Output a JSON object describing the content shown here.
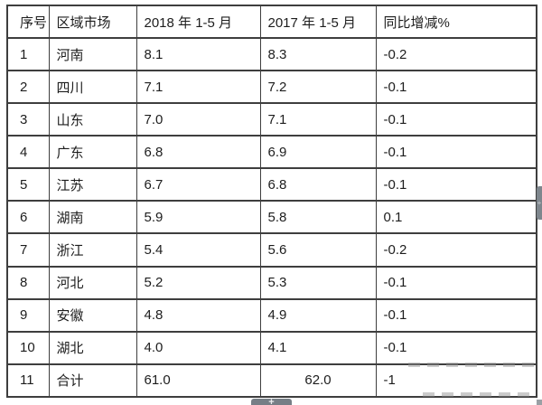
{
  "colors": {
    "table_border": "#3e3e3e",
    "text": "#1d1d1d",
    "overlay_gray": "#767e86",
    "background": "#ffffff"
  },
  "overlays": {
    "zoom_button_glyph": "+",
    "side_tab_glyph": "+"
  },
  "chart_data": {
    "type": "table",
    "columns": [
      "序号",
      "区域市场",
      "2018 年 1-5 月",
      "2017 年 1-5 月",
      "同比增减%"
    ],
    "rows": [
      [
        "1",
        "河南",
        "8.1",
        "8.3",
        "-0.2"
      ],
      [
        "2",
        "四川",
        "7.1",
        "7.2",
        "-0.1"
      ],
      [
        "3",
        "山东",
        "7.0",
        "7.1",
        "-0.1"
      ],
      [
        "4",
        "广东",
        "6.8",
        "6.9",
        "-0.1"
      ],
      [
        "5",
        "江苏",
        "6.7",
        "6.8",
        "-0.1"
      ],
      [
        "6",
        "湖南",
        "5.9",
        "5.8",
        "0.1"
      ],
      [
        "7",
        "浙江",
        "5.4",
        "5.6",
        "-0.2"
      ],
      [
        "8",
        "河北",
        "5.2",
        "5.3",
        "-0.1"
      ],
      [
        "9",
        "安徽",
        "4.8",
        "4.9",
        "-0.1"
      ],
      [
        "10",
        "湖北",
        "4.0",
        "4.1",
        "-0.1"
      ],
      [
        "11",
        "合计",
        "61.0",
        "62.0",
        "-1"
      ]
    ],
    "layout_hints": {
      "grid": "all-borders",
      "header_row": true,
      "total_row_index": 10,
      "centered_cell": {
        "row": 10,
        "col": 3
      }
    }
  }
}
